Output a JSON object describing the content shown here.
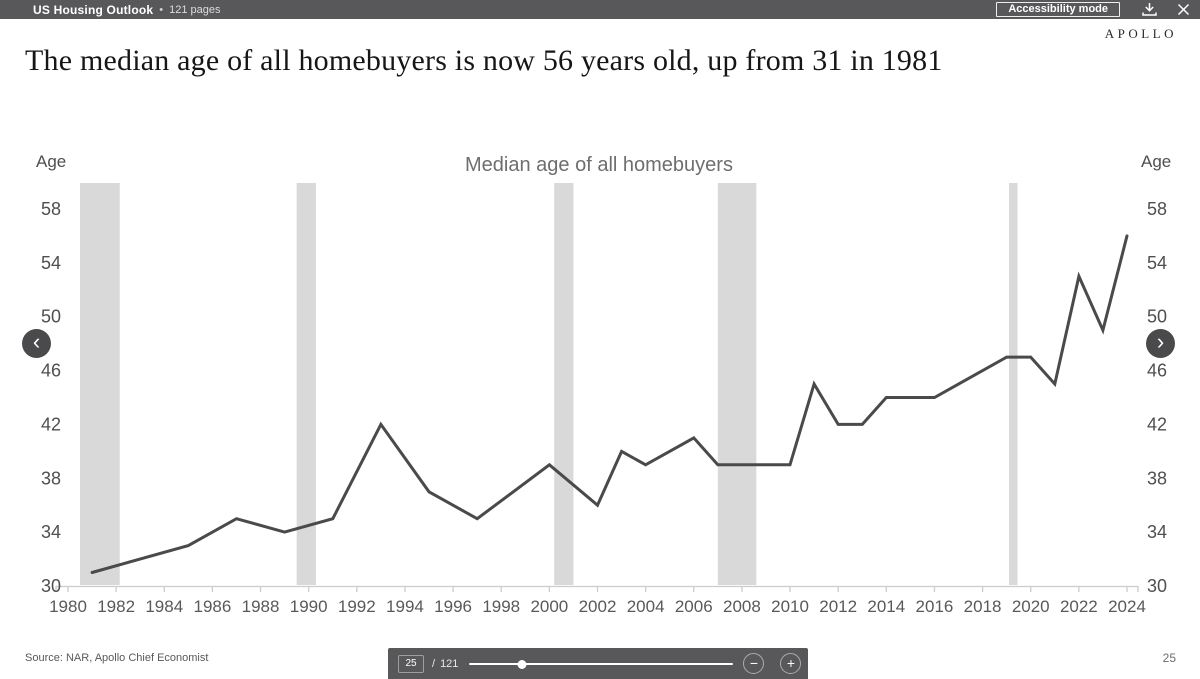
{
  "topbar": {
    "title": "US Housing Outlook",
    "separator": "•",
    "pages_label": "121 pages",
    "accessibility_button": "Accessibility mode"
  },
  "icons": {
    "download": "arrow-down-to-tray",
    "close": "x-mark",
    "prev": "chevron-left",
    "next": "chevron-right",
    "zoom_out": "minus-circle",
    "zoom_in": "plus-circle"
  },
  "brand": {
    "logo": "APOLLO"
  },
  "slide": {
    "title": "The median age of all homebuyers is now 56 years old, up from 31 in 1981",
    "source": "Source: NAR, Apollo Chief Economist",
    "page_number": "25"
  },
  "nav": {
    "prev_glyph": "‹",
    "next_glyph": "›"
  },
  "pager": {
    "current_page": "25",
    "separator": "/",
    "total_pages": "121"
  },
  "toolbar": {
    "zoom_out_glyph": "−",
    "zoom_in_glyph": "+"
  },
  "chart_data": {
    "type": "line",
    "title": "Median age of all homebuyers",
    "axis_label_left": "Age",
    "axis_label_right": "Age",
    "xlabel": "",
    "ylabel": "Age",
    "xlim": [
      1980,
      2024
    ],
    "ylim": [
      30,
      58
    ],
    "grid": false,
    "legend_position": "none",
    "x_ticks": [
      1980,
      1982,
      1984,
      1986,
      1988,
      1990,
      1992,
      1994,
      1996,
      1998,
      2000,
      2002,
      2004,
      2006,
      2008,
      2010,
      2012,
      2014,
      2016,
      2018,
      2020,
      2022,
      2024
    ],
    "y_ticks": [
      30,
      34,
      38,
      42,
      46,
      50,
      54,
      58
    ],
    "series": [
      {
        "name": "Median age of all homebuyers",
        "points": [
          [
            1981,
            31
          ],
          [
            1985,
            33
          ],
          [
            1987,
            35
          ],
          [
            1989,
            34
          ],
          [
            1991,
            35
          ],
          [
            1993,
            42
          ],
          [
            1995,
            37
          ],
          [
            1997,
            35
          ],
          [
            2000,
            39
          ],
          [
            2002,
            36
          ],
          [
            2003,
            40
          ],
          [
            2004,
            39
          ],
          [
            2006,
            41
          ],
          [
            2007,
            39
          ],
          [
            2010,
            39
          ],
          [
            2011,
            45
          ],
          [
            2012,
            42
          ],
          [
            2013,
            42
          ],
          [
            2014,
            44
          ],
          [
            2016,
            44
          ],
          [
            2019,
            47
          ],
          [
            2020,
            47
          ],
          [
            2021,
            45
          ],
          [
            2022,
            53
          ],
          [
            2023,
            49
          ],
          [
            2024,
            56
          ]
        ]
      }
    ],
    "recession_bands": [
      [
        1980.5,
        1982.15
      ],
      [
        1989.5,
        1990.3
      ],
      [
        2000.2,
        2001.0
      ],
      [
        2007.0,
        2008.6
      ],
      [
        2019.1,
        2019.45
      ]
    ],
    "colors": {
      "line": "#4a4a4a",
      "band": "#d9d9d9",
      "axis": "#cccccc",
      "tick_label": "#595959",
      "title": "#6e6e6e"
    }
  }
}
